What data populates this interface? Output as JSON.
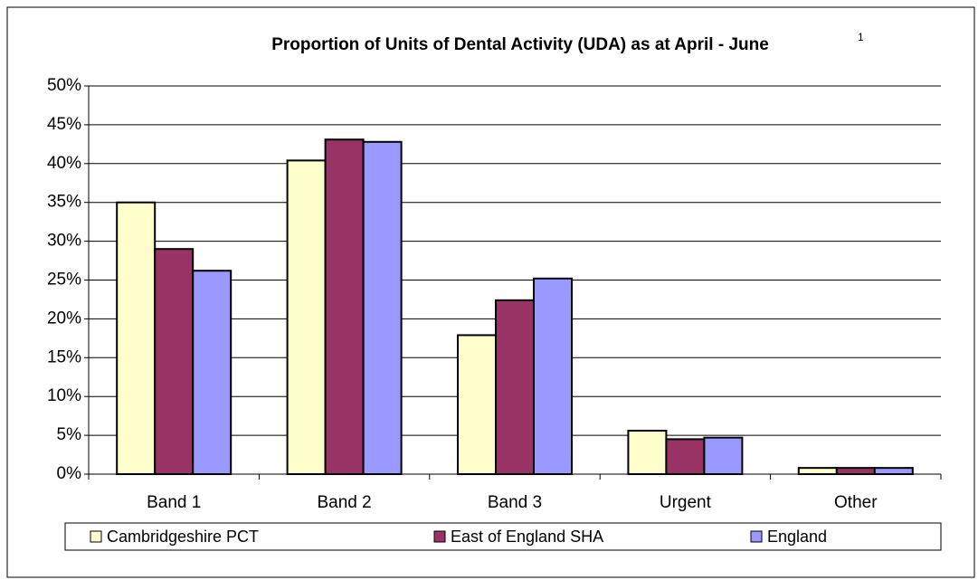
{
  "chart_data": {
    "type": "bar",
    "title": "Proportion of Units of Dental Activity (UDA) as at April - June",
    "title_footnote": "1",
    "categories": [
      "Band 1",
      "Band 2",
      "Band 3",
      "Urgent",
      "Other"
    ],
    "series": [
      {
        "name": "Cambridgeshire PCT",
        "color": "#ffffcc",
        "values": [
          35.0,
          40.4,
          17.9,
          5.6,
          0.8
        ]
      },
      {
        "name": "East of England SHA",
        "color": "#993366",
        "values": [
          29.0,
          43.1,
          22.4,
          4.5,
          0.8
        ]
      },
      {
        "name": "England",
        "color": "#9999ff",
        "values": [
          26.2,
          42.8,
          25.2,
          4.7,
          0.8
        ]
      }
    ],
    "ylim": [
      0,
      50
    ],
    "yticks": [
      {
        "value": 0,
        "label": "0%"
      },
      {
        "value": 5,
        "label": "5%"
      },
      {
        "value": 10,
        "label": "10%"
      },
      {
        "value": 15,
        "label": "15%"
      },
      {
        "value": 20,
        "label": "20%"
      },
      {
        "value": 25,
        "label": "25%"
      },
      {
        "value": 30,
        "label": "30%"
      },
      {
        "value": 35,
        "label": "35%"
      },
      {
        "value": 40,
        "label": "40%"
      },
      {
        "value": 45,
        "label": "45%"
      },
      {
        "value": 50,
        "label": "50%"
      }
    ],
    "grid": true,
    "legend": "bottom"
  }
}
